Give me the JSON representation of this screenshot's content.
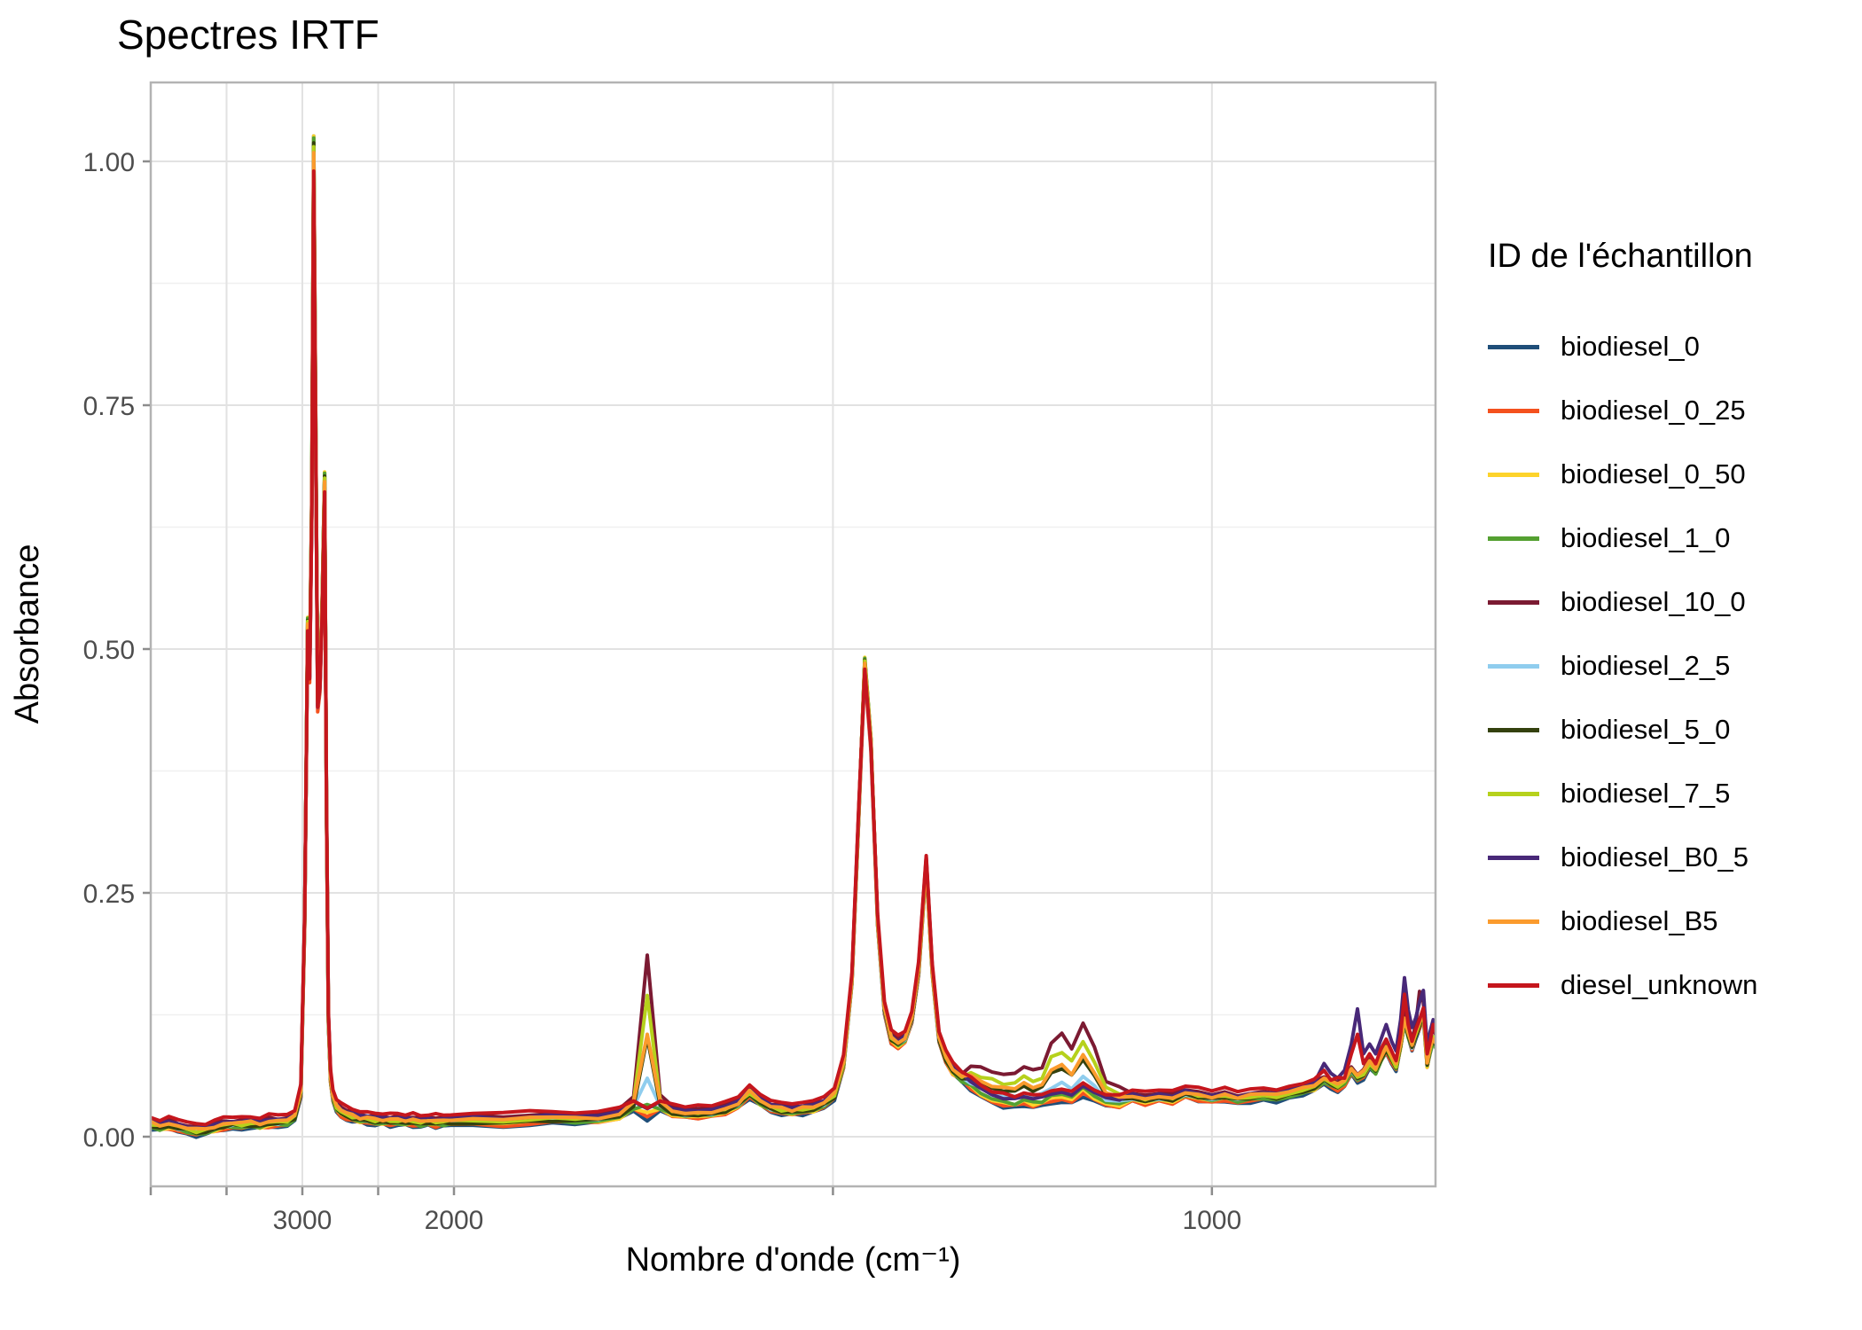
{
  "chart_data": {
    "type": "line",
    "title": "Spectres IRTF",
    "xlabel": "Nombre d'onde (cm⁻¹)",
    "ylabel": "Absorbance",
    "legend_title": "ID de l'échantillon",
    "legend_position": "right",
    "grid": true,
    "x_axis": {
      "reversed": true,
      "unit": "cm-1",
      "range": [
        4000,
        705
      ],
      "labeled_ticks": [
        3000,
        2000,
        1000
      ],
      "all_ticks": [
        4000,
        3500,
        3000,
        2500,
        2000,
        1500,
        1000
      ],
      "note_scale": "piecewise linear: 4000-2000 compressed, 2000-705 expanded"
    },
    "y_axis": {
      "range": [
        -0.05,
        1.08
      ],
      "labeled_ticks": [
        "0.00",
        "0.25",
        "0.50",
        "0.75",
        "1.00"
      ],
      "tick_values": [
        0,
        0.25,
        0.5,
        0.75,
        1.0
      ],
      "minor_ticks": [
        0.125,
        0.375,
        0.625,
        0.875
      ]
    },
    "wavenumbers": [
      4000,
      3940,
      3880,
      3820,
      3760,
      3700,
      3640,
      3580,
      3520,
      3460,
      3400,
      3340,
      3280,
      3220,
      3160,
      3100,
      3050,
      3010,
      2985,
      2965,
      2952,
      2938,
      2925,
      2913,
      2899,
      2884,
      2869,
      2853,
      2841,
      2828,
      2814,
      2798,
      2775,
      2745,
      2710,
      2670,
      2620,
      2570,
      2520,
      2470,
      2420,
      2370,
      2320,
      2270,
      2220,
      2170,
      2120,
      2070,
      2020,
      1975,
      1935,
      1900,
      1870,
      1840,
      1810,
      1782,
      1763,
      1745,
      1728,
      1712,
      1695,
      1678,
      1660,
      1642,
      1625,
      1610,
      1596,
      1582,
      1568,
      1554,
      1540,
      1526,
      1512,
      1498,
      1486,
      1475,
      1466,
      1458,
      1450,
      1441,
      1432,
      1423,
      1414,
      1405,
      1396,
      1387,
      1377,
      1369,
      1360,
      1351,
      1342,
      1330,
      1318,
      1305,
      1290,
      1275,
      1260,
      1248,
      1236,
      1224,
      1212,
      1198,
      1185,
      1170,
      1155,
      1140,
      1122,
      1105,
      1088,
      1070,
      1052,
      1035,
      1018,
      1000,
      983,
      966,
      949,
      932,
      915,
      898,
      880,
      865,
      852,
      843,
      834,
      825,
      816,
      808,
      800,
      792,
      784,
      777,
      770,
      763,
      757,
      751,
      746,
      741,
      736,
      731,
      726,
      721,
      716,
      712,
      708,
      705
    ],
    "base_absorbance": [
      0.012,
      0.01,
      0.012,
      0.009,
      0.007,
      0.005,
      0.006,
      0.009,
      0.011,
      0.012,
      0.012,
      0.013,
      0.012,
      0.014,
      0.014,
      0.015,
      0.02,
      0.045,
      0.22,
      0.52,
      0.47,
      0.64,
      1.0,
      0.74,
      0.44,
      0.46,
      0.54,
      0.665,
      0.34,
      0.12,
      0.06,
      0.04,
      0.03,
      0.025,
      0.022,
      0.02,
      0.018,
      0.017,
      0.016,
      0.016,
      0.015,
      0.016,
      0.015,
      0.015,
      0.014,
      0.015,
      0.014,
      0.015,
      0.015,
      0.016,
      0.015,
      0.017,
      0.018,
      0.017,
      0.018,
      0.022,
      0.03,
      0.02,
      0.03,
      0.025,
      0.023,
      0.023,
      0.024,
      0.027,
      0.033,
      0.044,
      0.036,
      0.029,
      0.027,
      0.026,
      0.027,
      0.029,
      0.033,
      0.042,
      0.075,
      0.16,
      0.33,
      0.48,
      0.4,
      0.22,
      0.13,
      0.1,
      0.095,
      0.1,
      0.12,
      0.17,
      0.28,
      0.17,
      0.1,
      0.08,
      0.068,
      0.06,
      0.052,
      0.045,
      0.038,
      0.035,
      0.034,
      0.036,
      0.034,
      0.036,
      0.038,
      0.04,
      0.038,
      0.046,
      0.04,
      0.035,
      0.034,
      0.04,
      0.037,
      0.04,
      0.038,
      0.044,
      0.041,
      0.039,
      0.041,
      0.038,
      0.04,
      0.042,
      0.04,
      0.044,
      0.047,
      0.051,
      0.058,
      0.054,
      0.051,
      0.056,
      0.068,
      0.06,
      0.064,
      0.075,
      0.068,
      0.08,
      0.09,
      0.08,
      0.072,
      0.095,
      0.12,
      0.105,
      0.092,
      0.105,
      0.115,
      0.128,
      0.075,
      0.09,
      0.1,
      0.095
    ],
    "ester_peak_deltas": {
      "1763": 0.006,
      "1745": 0.16,
      "1728": 0.008,
      "1318": 0.016,
      "1305": 0.02,
      "1290": 0.024,
      "1275": 0.024,
      "1260": 0.026,
      "1248": 0.032,
      "1236": 0.028,
      "1224": 0.03,
      "1212": 0.054,
      "1198": 0.06,
      "1185": 0.048,
      "1170": 0.066,
      "1155": 0.046,
      "1140": 0.017,
      "1122": 0.011
    },
    "series": [
      {
        "name": "biodiesel_0",
        "color": "#1f4e79",
        "ester_scale": 0.0,
        "ch_scale": 1.03,
        "offset": -0.004,
        "absorbance_1745": 0.02
      },
      {
        "name": "biodiesel_0_25",
        "color": "#f4511e",
        "ester_scale": 0.02,
        "ch_scale": 0.997,
        "offset": -0.003,
        "absorbance_1745": 0.023
      },
      {
        "name": "biodiesel_0_50",
        "color": "#fdd32b",
        "ester_scale": 0.05,
        "ch_scale": 1.028,
        "offset": -0.002,
        "absorbance_1745": 0.028
      },
      {
        "name": "biodiesel_1_0",
        "color": "#54a031",
        "ester_scale": 0.1,
        "ch_scale": 1.026,
        "offset": -0.002,
        "absorbance_1745": 0.036
      },
      {
        "name": "biodiesel_10_0",
        "color": "#7b1a32",
        "ester_scale": 1.0,
        "ch_scale": 0.99,
        "offset": 0.005,
        "absorbance_1745": 0.18,
        "overrides": {
          "746": 0.13,
          "741": 0.112,
          "736": 0.1,
          "731": 0.115,
          "726": 0.149,
          "721": 0.138,
          "716": 0.088,
          "712": 0.1,
          "708": 0.112,
          "705": 0.105
        }
      },
      {
        "name": "biodiesel_2_5",
        "color": "#8fcdee",
        "ester_scale": 0.24,
        "ch_scale": 1.0,
        "offset": 0.0,
        "absorbance_1745": 0.056
      },
      {
        "name": "biodiesel_5_0",
        "color": "#34410e",
        "ester_scale": 0.52,
        "ch_scale": 1.02,
        "offset": -0.001,
        "absorbance_1745": 0.1
      },
      {
        "name": "biodiesel_7_5",
        "color": "#b6d11c",
        "ester_scale": 0.78,
        "ch_scale": 1.014,
        "offset": 0.001,
        "absorbance_1745": 0.145
      },
      {
        "name": "biodiesel_B0_5",
        "color": "#482878",
        "ester_scale": 0.03,
        "ch_scale": 0.995,
        "offset": 0.004,
        "absorbance_1745": 0.025,
        "overrides": {
          "852": 0.075,
          "843": 0.065,
          "834": 0.06,
          "825": 0.068,
          "816": 0.095,
          "808": 0.131,
          "800": 0.085,
          "792": 0.095,
          "784": 0.085,
          "777": 0.1,
          "770": 0.115,
          "763": 0.098,
          "757": 0.088,
          "751": 0.12,
          "746": 0.163,
          "741": 0.13,
          "736": 0.112,
          "731": 0.122,
          "726": 0.138,
          "721": 0.15,
          "716": 0.092,
          "712": 0.108,
          "708": 0.12,
          "705": 0.112
        }
      },
      {
        "name": "biodiesel_B5",
        "color": "#fb9b2d",
        "ester_scale": 0.52,
        "ch_scale": 1.007,
        "offset": 0.002,
        "absorbance_1745": 0.103
      },
      {
        "name": "diesel_unknown",
        "color": "#c5161d",
        "ester_scale": 0.01,
        "ch_scale": 0.982,
        "offset": 0.008,
        "absorbance_1745": 0.022,
        "overrides": {
          "852": 0.068,
          "843": 0.058,
          "825": 0.06,
          "816": 0.085,
          "808": 0.105,
          "800": 0.075,
          "792": 0.085,
          "777": 0.09,
          "770": 0.1,
          "763": 0.088,
          "757": 0.078,
          "751": 0.105,
          "746": 0.146,
          "741": 0.115,
          "736": 0.098,
          "731": 0.11,
          "726": 0.12,
          "721": 0.132,
          "716": 0.085,
          "712": 0.098,
          "708": 0.115,
          "705": 0.108
        }
      }
    ],
    "colors": {
      "grid_major": "#e2e2e2",
      "grid_minor": "#f0f0f0",
      "panel_border": "#b3b3b3",
      "tick_mark": "#8c8c8c",
      "tick_label": "#4d4d4d",
      "text": "#000000",
      "background": "#ffffff"
    }
  }
}
